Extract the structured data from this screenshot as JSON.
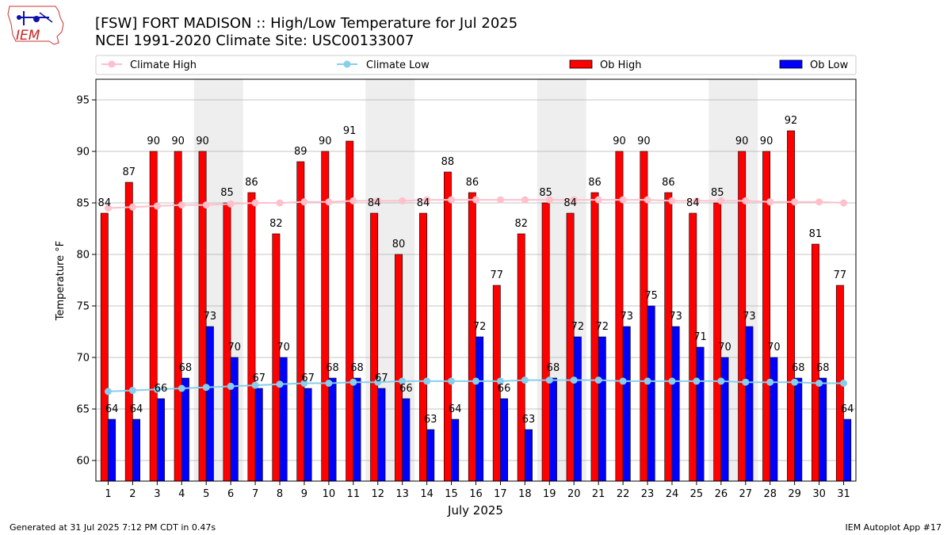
{
  "header": {
    "logo_text": "IEM",
    "title_line1": "[FSW] FORT MADISON :: High/Low Temperature for Jul 2025",
    "title_line2": "NCEI 1991-2020 Climate Site: USC00133007"
  },
  "footer": {
    "generated": "Generated at 31 Jul 2025 7:12 PM CDT in 0.47s",
    "app": "IEM Autoplot App #17"
  },
  "colors": {
    "ob_high": "#ff0000",
    "ob_low": "#0000ff",
    "climate_high": "#ffc0cb",
    "climate_low": "#87ceeb",
    "weekend_shade": "#eeeeee",
    "grid": "#b0b0b0"
  },
  "chart_data": {
    "type": "bar",
    "xlabel": "July 2025",
    "ylabel": "Temperature °F",
    "ylim": [
      58,
      97
    ],
    "yticks": [
      60,
      65,
      70,
      75,
      80,
      85,
      90,
      95
    ],
    "grid": "horizontal",
    "legend_placement": "top",
    "categories": [
      "1",
      "2",
      "3",
      "4",
      "5",
      "6",
      "7",
      "8",
      "9",
      "10",
      "11",
      "12",
      "13",
      "14",
      "15",
      "16",
      "17",
      "18",
      "19",
      "20",
      "21",
      "22",
      "23",
      "24",
      "25",
      "26",
      "27",
      "28",
      "29",
      "30",
      "31"
    ],
    "shaded_days": [
      [
        "5",
        "6"
      ],
      [
        "12",
        "13"
      ],
      [
        "19",
        "20"
      ],
      [
        "26",
        "27"
      ]
    ],
    "series": [
      {
        "name": "Ob High",
        "kind": "bar",
        "values": [
          84,
          87,
          90,
          90,
          90,
          85,
          86,
          82,
          89,
          90,
          91,
          84,
          80,
          84,
          88,
          86,
          77,
          82,
          85,
          84,
          86,
          90,
          90,
          86,
          84,
          85,
          90,
          90,
          92,
          81,
          77
        ],
        "labels": [
          "84",
          "87",
          "90",
          "90",
          "90",
          "85",
          "86",
          "82",
          "89",
          "90",
          "91",
          "84",
          "80",
          "84",
          "88",
          "86",
          "77",
          "82",
          "85",
          "84",
          "86",
          "90",
          "90",
          "86",
          "84",
          "85",
          "90",
          "90",
          "92",
          "81",
          "77"
        ]
      },
      {
        "name": "Ob Low",
        "kind": "bar",
        "values": [
          64,
          64,
          66,
          68,
          73,
          70,
          67,
          70,
          67,
          68,
          68,
          67,
          66,
          63,
          64,
          72,
          66,
          63,
          68,
          72,
          72,
          73,
          75,
          73,
          71,
          70,
          73,
          70,
          68,
          68,
          64
        ],
        "labels": [
          "64",
          "64",
          "66",
          "68",
          "73",
          "70",
          "67",
          "70",
          "67",
          "68",
          "68",
          "67",
          "66",
          "63",
          "64",
          "72",
          "66",
          "63",
          "68",
          "72",
          "72",
          "73",
          "75",
          "73",
          "71",
          "70",
          "73",
          "70",
          "68",
          "68",
          "64"
        ]
      },
      {
        "name": "Climate High",
        "kind": "line",
        "values": [
          84.5,
          84.6,
          84.7,
          84.8,
          84.8,
          84.9,
          85.0,
          85.0,
          85.1,
          85.1,
          85.2,
          85.2,
          85.2,
          85.3,
          85.3,
          85.3,
          85.3,
          85.3,
          85.3,
          85.3,
          85.3,
          85.3,
          85.3,
          85.2,
          85.2,
          85.2,
          85.2,
          85.1,
          85.1,
          85.1,
          85.0
        ]
      },
      {
        "name": "Climate Low",
        "kind": "line",
        "values": [
          66.7,
          66.8,
          66.9,
          67.0,
          67.1,
          67.2,
          67.3,
          67.4,
          67.5,
          67.5,
          67.6,
          67.6,
          67.7,
          67.7,
          67.7,
          67.7,
          67.7,
          67.8,
          67.8,
          67.8,
          67.8,
          67.7,
          67.7,
          67.7,
          67.7,
          67.7,
          67.6,
          67.6,
          67.6,
          67.5,
          67.5
        ]
      }
    ]
  }
}
